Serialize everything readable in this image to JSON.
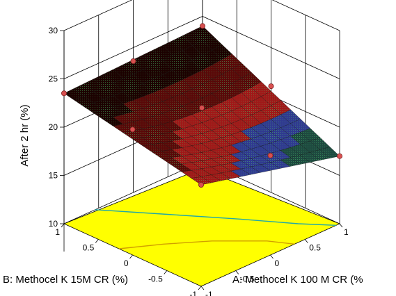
{
  "chart_data": {
    "type": "surface",
    "title": "",
    "zlabel": "After 2 hr (%)",
    "xlabel": "A: Methocel K 100 M CR (%",
    "ylabel": "B: Methocel K 15M CR (%)",
    "z_ticks": [
      "10",
      "15",
      "20",
      "25",
      "30"
    ],
    "zlim": [
      10,
      30
    ],
    "a_ticks": [
      "-1",
      "-0.5",
      "0",
      "0.5",
      "1"
    ],
    "b_ticks": [
      "-1",
      "-0.5",
      "0",
      "0.5",
      "1"
    ],
    "a_range": [
      -1,
      1
    ],
    "b_range": [
      -1,
      1
    ],
    "grid": true,
    "surface_gradient": [
      "#1a0000",
      "#7a1010",
      "#d02020",
      "#2040a0",
      "#40c060"
    ],
    "contour_floor_color": "#ffff00",
    "point_color": "#d85050",
    "contour_line_colors": [
      "#20a8a8",
      "#d0a000"
    ],
    "corner_values": [
      {
        "a": -1,
        "b": 1,
        "z": 23.5
      },
      {
        "a": 1,
        "b": 1,
        "z": 24.0
      },
      {
        "a": -1,
        "b": -1,
        "z": 20.5
      },
      {
        "a": 1,
        "b": -1,
        "z": 17.0
      }
    ],
    "design_points": [
      {
        "a": -1,
        "b": 1,
        "z": 23.5
      },
      {
        "a": -1,
        "b": 0,
        "z": 23.0
      },
      {
        "a": 1,
        "b": 1,
        "z": 24.0
      },
      {
        "a": 0,
        "b": 1,
        "z": 23.6
      },
      {
        "a": 0,
        "b": 0,
        "z": 22.0
      },
      {
        "a": 1,
        "b": 0,
        "z": 21.0
      },
      {
        "a": 0,
        "b": -1,
        "z": 20.3
      },
      {
        "a": -1,
        "b": -1,
        "z": 20.5
      },
      {
        "a": 1,
        "b": -1,
        "z": 17.0
      }
    ]
  }
}
